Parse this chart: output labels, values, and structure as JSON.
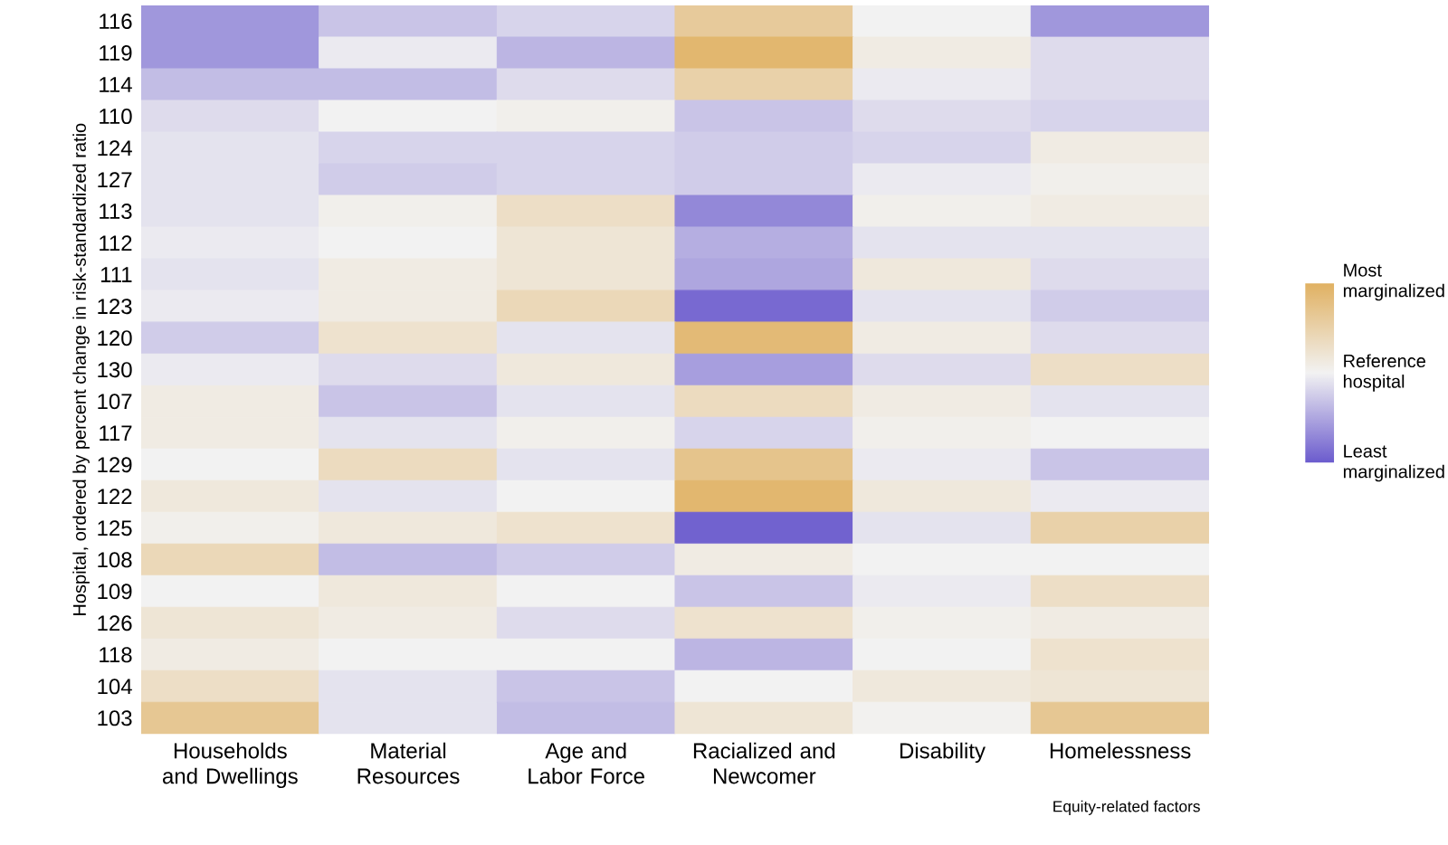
{
  "chart_data": {
    "type": "heatmap",
    "xlabel": "Equity-related factors",
    "ylabel": "Hospital, ordered by percent change in risk-standardized ratio",
    "categories": [
      "Households and Dwellings",
      "Material Resources",
      "Age and Labor Force",
      "Racialized and Newcomer",
      "Disability",
      "Homelessness"
    ],
    "y_categories": [
      "116",
      "119",
      "114",
      "110",
      "124",
      "127",
      "113",
      "112",
      "111",
      "123",
      "120",
      "130",
      "107",
      "117",
      "129",
      "122",
      "125",
      "108",
      "109",
      "126",
      "118",
      "104",
      "103"
    ],
    "cells": [
      [
        -0.6,
        -0.3,
        -0.2,
        0.6,
        0,
        -0.6
      ],
      [
        -0.6,
        -0.05,
        -0.4,
        0.9,
        0.1,
        -0.15
      ],
      [
        -0.35,
        -0.35,
        -0.15,
        0.5,
        -0.05,
        -0.15
      ],
      [
        -0.15,
        0,
        0.05,
        -0.3,
        -0.15,
        -0.2
      ],
      [
        -0.1,
        -0.2,
        -0.2,
        -0.25,
        -0.2,
        0.1
      ],
      [
        -0.1,
        -0.25,
        -0.2,
        -0.25,
        -0.05,
        0.05
      ],
      [
        -0.1,
        0.05,
        0.3,
        -0.7,
        0.05,
        0.1
      ],
      [
        -0.05,
        0,
        0.2,
        -0.45,
        -0.1,
        -0.1
      ],
      [
        -0.1,
        0.1,
        0.2,
        -0.5,
        0.15,
        -0.15
      ],
      [
        -0.05,
        0.1,
        0.4,
        -0.9,
        -0.1,
        -0.25
      ],
      [
        -0.25,
        0.25,
        -0.1,
        0.85,
        0.1,
        -0.15
      ],
      [
        -0.05,
        -0.15,
        0.15,
        -0.55,
        -0.15,
        0.3
      ],
      [
        0.1,
        -0.3,
        -0.1,
        0.35,
        0.1,
        -0.1
      ],
      [
        0.1,
        -0.1,
        0.05,
        -0.2,
        0.05,
        0
      ],
      [
        0,
        0.35,
        -0.1,
        0.7,
        -0.05,
        -0.3
      ],
      [
        0.15,
        -0.1,
        0,
        0.9,
        0.15,
        -0.05
      ],
      [
        0.05,
        0.15,
        0.25,
        -0.95,
        -0.1,
        0.5
      ],
      [
        0.4,
        -0.35,
        -0.25,
        0.1,
        0,
        0
      ],
      [
        0,
        0.15,
        0,
        -0.3,
        -0.05,
        0.3
      ],
      [
        0.2,
        0.1,
        -0.15,
        0.25,
        0.05,
        0.1
      ],
      [
        0.1,
        0,
        0,
        -0.4,
        0,
        0.25
      ],
      [
        0.3,
        -0.1,
        -0.3,
        0,
        0.15,
        0.2
      ],
      [
        0.65,
        -0.1,
        -0.35,
        0.2,
        0.02,
        0.65
      ]
    ],
    "clim": [
      -1,
      1
    ],
    "cticks": [
      {
        "value": 1,
        "label": "Most marginalized"
      },
      {
        "value": 0,
        "label": "Reference hospital"
      },
      {
        "value": -1,
        "label": "Least marginalized"
      }
    ]
  }
}
